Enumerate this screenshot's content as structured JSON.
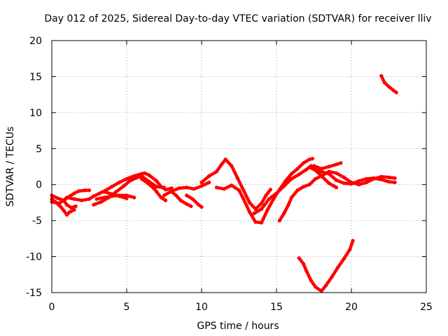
{
  "chart_data": {
    "type": "scatter",
    "title": "Day 012 of 2025, Sidereal Day-to-day VTEC variation (SDTVAR) for receiver lliv",
    "xlabel": "GPS time / hours",
    "ylabel": "SDTVAR / TECUs",
    "xlim": [
      0,
      25
    ],
    "ylim": [
      -15,
      20
    ],
    "xticks": [
      "0",
      "5",
      "10",
      "15",
      "20",
      "25"
    ],
    "yticks": [
      "-15",
      "-10",
      "-5",
      "0",
      "5",
      "10",
      "15",
      "20"
    ],
    "grid": true,
    "legend": "none",
    "color": "#ff0000",
    "series": [
      {
        "x": [
          0.0,
          0.5,
          0.9,
          1.2,
          1.5,
          1.8,
          2.2,
          2.5
        ],
        "y": [
          -2.4,
          -2.6,
          -2.0,
          -1.6,
          -1.2,
          -0.9,
          -0.8,
          -0.8
        ]
      },
      {
        "x": [
          0.0,
          0.4,
          0.8,
          1.0,
          1.3,
          1.6
        ],
        "y": [
          -1.5,
          -1.9,
          -2.2,
          -2.8,
          -3.2,
          -3.0
        ]
      },
      {
        "x": [
          0.0,
          0.3,
          0.6,
          0.8,
          1.0,
          1.2,
          1.5
        ],
        "y": [
          -2.0,
          -2.5,
          -3.1,
          -3.6,
          -4.2,
          -3.8,
          -3.5
        ]
      },
      {
        "x": [
          1.0,
          1.5,
          2.0,
          2.5,
          2.8,
          3.2,
          3.6,
          4.0,
          4.5,
          5.0,
          5.5,
          6.0,
          6.2,
          6.5,
          7.0,
          7.3,
          7.6,
          8.0
        ],
        "y": [
          -1.8,
          -2.0,
          -2.2,
          -2.0,
          -1.6,
          -1.2,
          -0.8,
          -0.3,
          0.3,
          0.8,
          1.2,
          1.5,
          1.6,
          1.3,
          0.5,
          -0.3,
          -0.7,
          -0.5
        ]
      },
      {
        "x": [
          2.8,
          3.3,
          3.8,
          4.3,
          4.8,
          5.2,
          5.6,
          6.0,
          6.5,
          7.0,
          7.5
        ],
        "y": [
          -2.8,
          -2.4,
          -1.8,
          -1.0,
          -0.2,
          0.5,
          0.9,
          1.2,
          0.4,
          -0.3,
          -0.4
        ]
      },
      {
        "x": [
          3.0,
          3.5,
          4.0,
          4.5,
          5.0,
          5.5
        ],
        "y": [
          -2.0,
          -1.8,
          -1.6,
          -1.5,
          -1.5,
          -1.8
        ]
      },
      {
        "x": [
          3.5,
          4.0,
          4.5,
          5.0
        ],
        "y": [
          -1.0,
          -1.3,
          -1.6,
          -1.9
        ]
      },
      {
        "x": [
          6.0,
          6.4,
          6.8,
          7.0,
          7.3,
          7.6
        ],
        "y": [
          0.8,
          0.2,
          -0.5,
          -1.0,
          -1.8,
          -2.2
        ]
      },
      {
        "x": [
          7.5,
          8.0,
          8.5,
          9.0,
          9.5,
          10.0,
          10.5
        ],
        "y": [
          -1.5,
          -0.9,
          -0.5,
          -0.4,
          -0.6,
          -0.2,
          0.3
        ]
      },
      {
        "x": [
          8.0,
          8.3,
          8.6,
          9.0,
          9.3
        ],
        "y": [
          -1.0,
          -1.5,
          -2.2,
          -2.7,
          -3.0
        ]
      },
      {
        "x": [
          9.0,
          9.4,
          9.8,
          10.0
        ],
        "y": [
          -1.5,
          -2.0,
          -2.8,
          -3.1
        ]
      },
      {
        "x": [
          10.0,
          10.5,
          11.0,
          11.3,
          11.6,
          12.0,
          12.4,
          12.8,
          13.2,
          13.6,
          14.0,
          14.3,
          14.6
        ],
        "y": [
          0.3,
          1.2,
          1.8,
          2.7,
          3.5,
          2.6,
          0.9,
          -0.8,
          -2.5,
          -3.4,
          -2.6,
          -1.5,
          -0.7
        ]
      },
      {
        "x": [
          11.0,
          11.5,
          12.0,
          12.5,
          12.8,
          13.2,
          13.6,
          14.0,
          14.4,
          14.8,
          15.2,
          15.6,
          16.0,
          16.4,
          16.8,
          17.2,
          17.4
        ],
        "y": [
          -0.4,
          -0.6,
          -0.1,
          -0.8,
          -2.0,
          -3.8,
          -5.2,
          -5.3,
          -3.5,
          -2.0,
          -0.7,
          0.5,
          1.5,
          2.2,
          3.0,
          3.5,
          3.6
        ]
      },
      {
        "x": [
          13.5,
          14.0,
          14.5,
          15.0,
          15.5,
          16.0,
          16.5,
          17.0,
          17.3,
          17.6,
          18.0,
          18.5,
          19.0,
          19.5,
          20.0,
          20.5,
          21.0,
          21.5,
          22.0,
          22.5,
          22.9
        ],
        "y": [
          -4.0,
          -3.4,
          -2.0,
          -1.2,
          -0.2,
          0.8,
          1.4,
          2.1,
          2.6,
          2.0,
          1.8,
          1.5,
          0.6,
          0.2,
          0.1,
          0.5,
          0.8,
          0.9,
          0.7,
          0.4,
          0.3
        ]
      },
      {
        "x": [
          15.2,
          15.5,
          15.8,
          16.0,
          16.4,
          16.8,
          17.2,
          17.6,
          18.0,
          18.5,
          19.0,
          19.5,
          20.0,
          20.5,
          21.0,
          21.5,
          22.0,
          22.5,
          22.9
        ],
        "y": [
          -5.0,
          -4.0,
          -2.8,
          -1.8,
          -0.8,
          -0.3,
          0.0,
          0.8,
          1.2,
          1.8,
          1.6,
          1.0,
          0.3,
          0.0,
          0.3,
          0.8,
          1.1,
          1.0,
          0.9
        ]
      },
      {
        "x": [
          17.2,
          17.6,
          18.0,
          18.5,
          19.0
        ],
        "y": [
          2.4,
          2.0,
          1.2,
          0.2,
          -0.4
        ]
      },
      {
        "x": [
          17.5,
          18.0,
          18.5,
          19.0,
          19.3
        ],
        "y": [
          2.6,
          2.2,
          2.5,
          2.8,
          3.0
        ]
      },
      {
        "x": [
          16.5,
          16.8,
          17.0,
          17.3,
          17.6,
          18.0,
          18.3,
          18.7,
          19.1,
          19.5,
          19.9,
          20.1
        ],
        "y": [
          -10.2,
          -11.0,
          -12.0,
          -13.3,
          -14.2,
          -14.8,
          -14.0,
          -12.8,
          -11.5,
          -10.3,
          -9.0,
          -7.8
        ]
      },
      {
        "x": [
          22.0,
          22.2,
          22.5,
          22.8,
          23.0
        ],
        "y": [
          15.1,
          14.2,
          13.6,
          13.1,
          12.8
        ]
      }
    ]
  }
}
